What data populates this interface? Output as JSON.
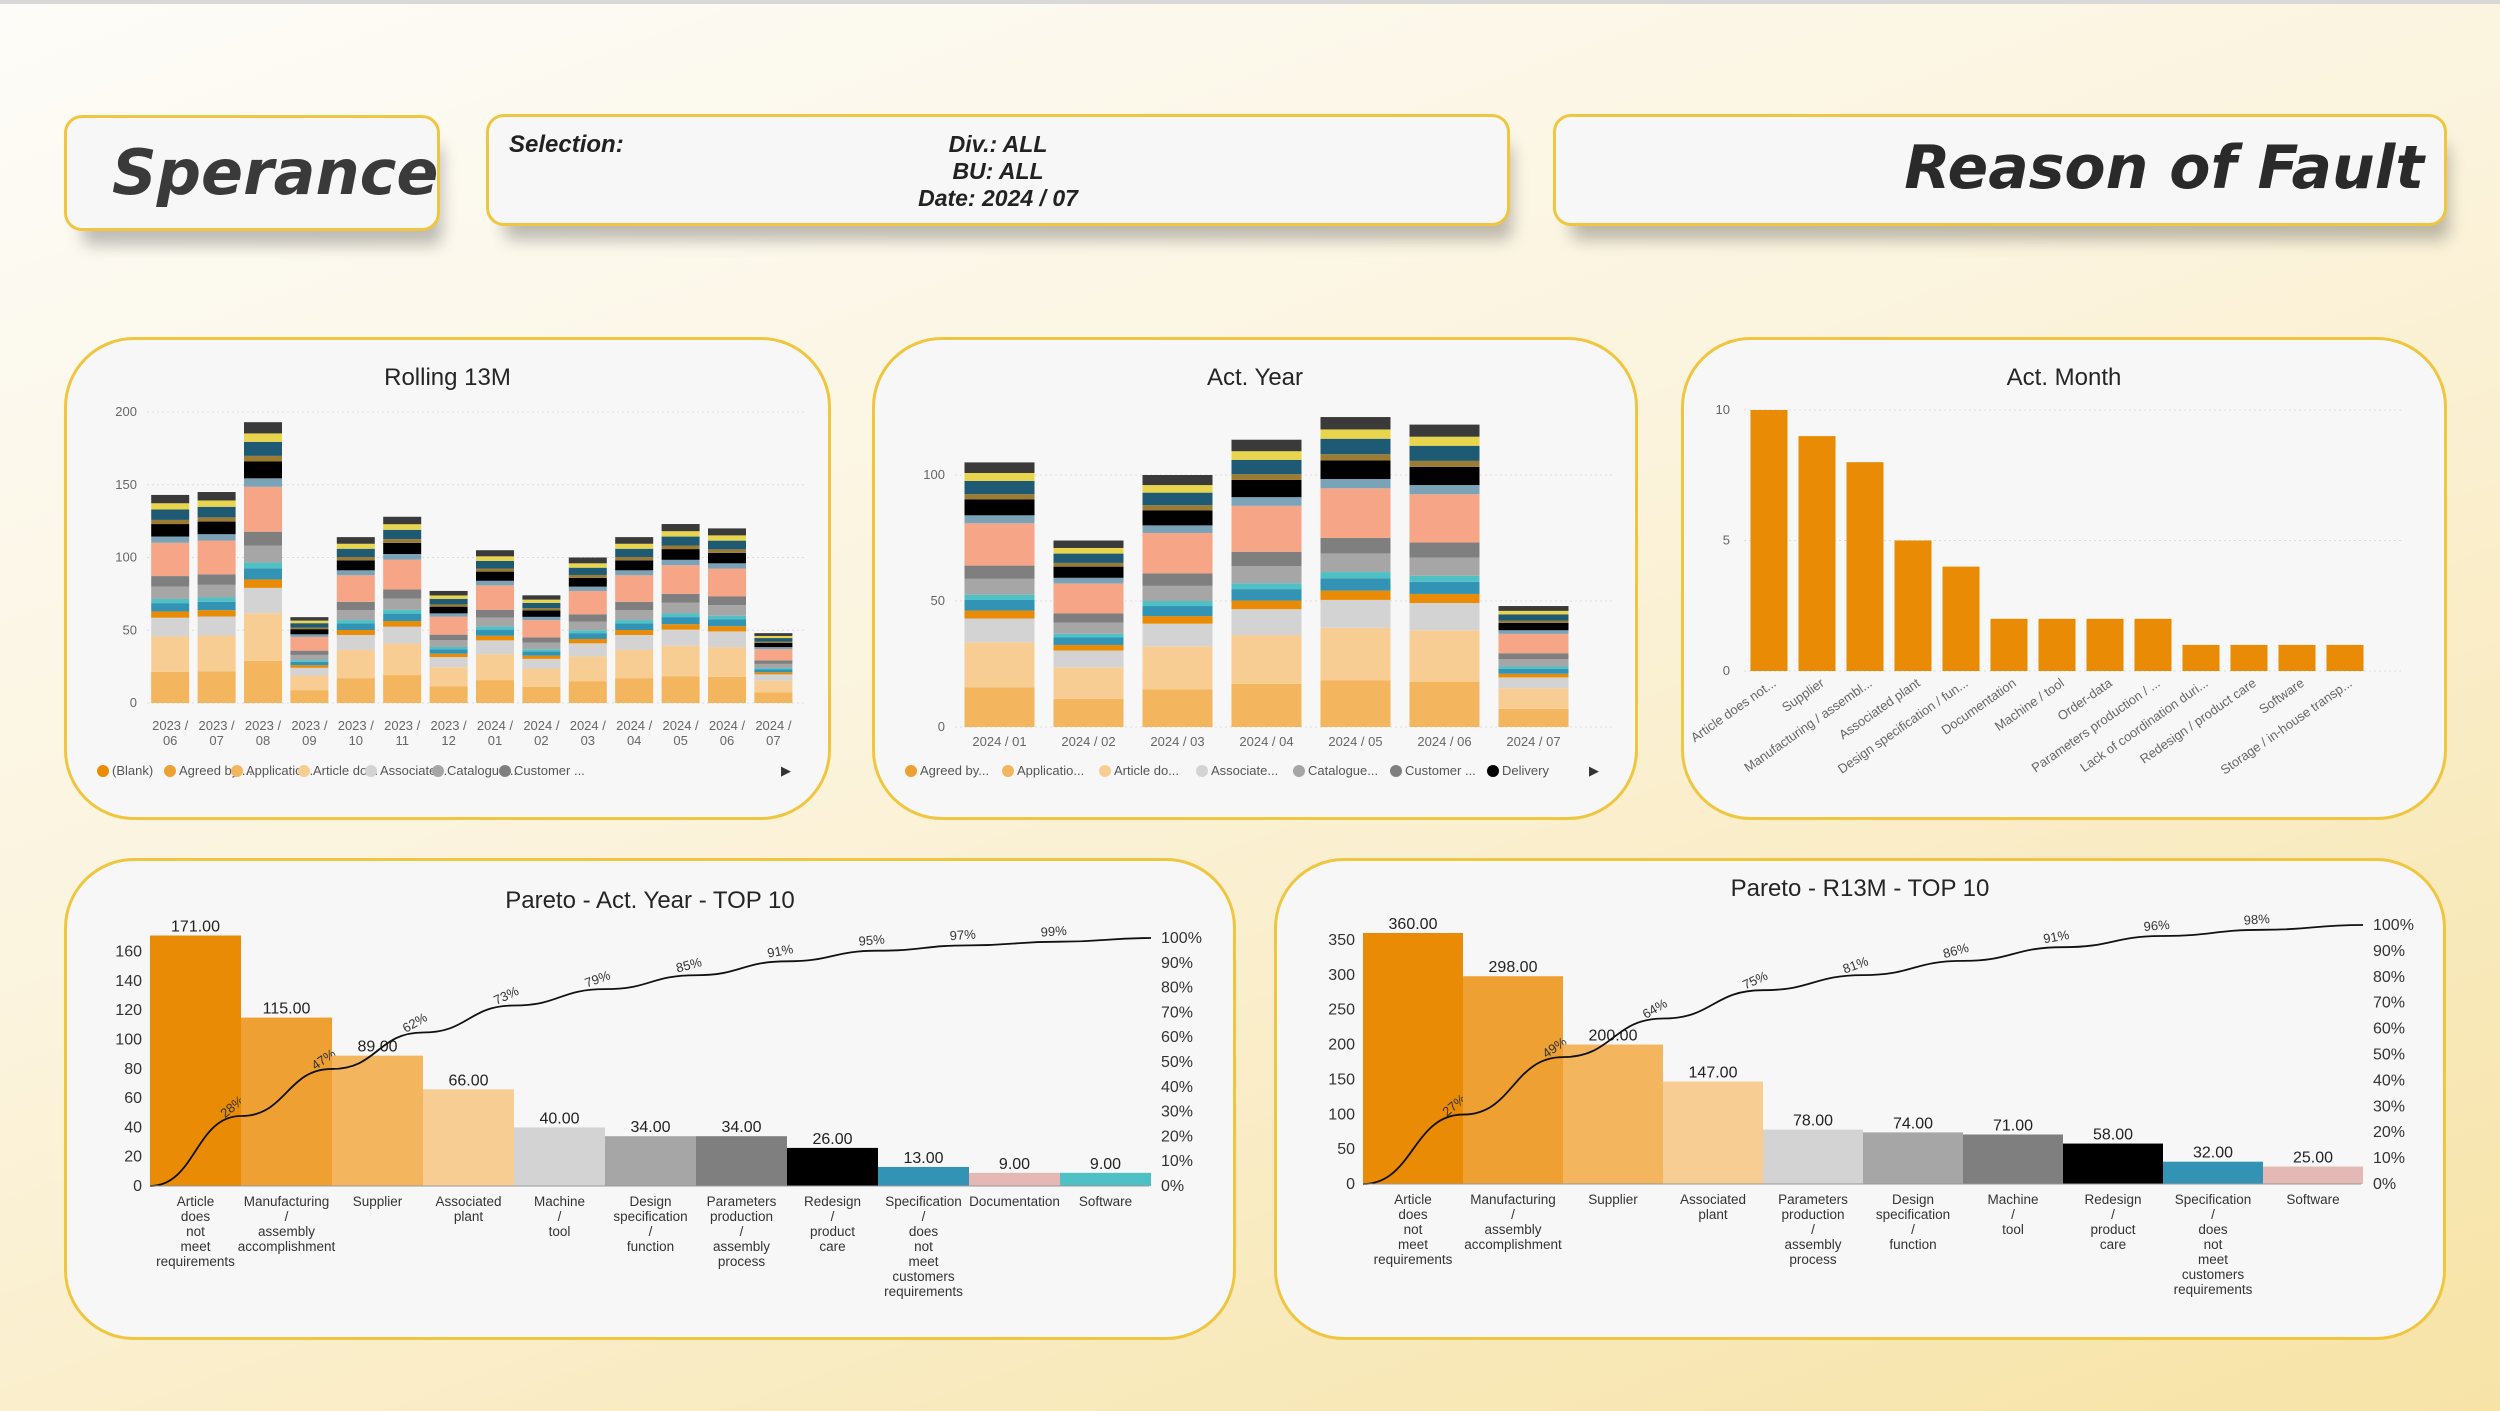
{
  "header": {
    "brand": "Sperance",
    "selection_label": "Selection:",
    "selection_lines": [
      "Div.: ALL",
      "BU: ALL",
      "Date: 2024 / 07"
    ],
    "report_title": "Reason of Fault"
  },
  "colors": {
    "border": "#f0c641",
    "orange": "#e98b04",
    "palette": [
      "#e98b04",
      "#eea033",
      "#f3b55e",
      "#f7cd93",
      "#d3d3d3",
      "#a6a6a6",
      "#7f7f7f",
      "#000000",
      "#3293b5",
      "#4fc1c5",
      "#e4b8b4",
      "#f6a586",
      "#7aa3b8",
      "#1f5a74",
      "#2c3e50",
      "#3a3a3a",
      "#9c7b32",
      "#e8d44d"
    ]
  },
  "chart_data": [
    {
      "id": "rolling",
      "type": "bar",
      "stacked": true,
      "title": "Rolling 13M",
      "categories": [
        [
          "2023 /",
          "06"
        ],
        [
          "2023 /",
          "07"
        ],
        [
          "2023 /",
          "08"
        ],
        [
          "2023 /",
          "09"
        ],
        [
          "2023 /",
          "10"
        ],
        [
          "2023 /",
          "11"
        ],
        [
          "2023 /",
          "12"
        ],
        [
          "2024 /",
          "01"
        ],
        [
          "2024 /",
          "02"
        ],
        [
          "2024 /",
          "03"
        ],
        [
          "2024 /",
          "04"
        ],
        [
          "2024 /",
          "05"
        ],
        [
          "2024 /",
          "06"
        ],
        [
          "2024 /",
          "07"
        ]
      ],
      "totals": [
        143,
        145,
        193,
        59,
        114,
        128,
        77,
        105,
        74,
        100,
        114,
        123,
        120,
        48
      ],
      "ylim": [
        0,
        200
      ],
      "yticks": [
        0,
        50,
        100,
        150,
        200
      ],
      "legend": [
        "(Blank)",
        "Agreed by ...",
        "Applicatio...",
        "Article do...",
        "Associate...",
        "Catalogue...",
        "Customer ..."
      ],
      "legend_colors": [
        "#e98b04",
        "#eea033",
        "#f3b55e",
        "#f7cd93",
        "#d3d3d3",
        "#a6a6a6",
        "#7f7f7f"
      ],
      "legend_more": "▶"
    },
    {
      "id": "actyear",
      "type": "bar",
      "stacked": true,
      "title": "Act. Year",
      "categories": [
        [
          "2024 / 01"
        ],
        [
          "2024 / 02"
        ],
        [
          "2024 / 03"
        ],
        [
          "2024 / 04"
        ],
        [
          "2024 / 05"
        ],
        [
          "2024 / 06"
        ],
        [
          "2024 / 07"
        ]
      ],
      "totals": [
        105,
        74,
        100,
        114,
        123,
        120,
        48
      ],
      "ylim": [
        0,
        125
      ],
      "yticks": [
        0,
        50,
        100
      ],
      "legend": [
        "Agreed by...",
        "Applicatio...",
        "Article do...",
        "Associate...",
        "Catalogue...",
        "Customer ...",
        "Delivery"
      ],
      "legend_colors": [
        "#eea033",
        "#f3b55e",
        "#f7cd93",
        "#d3d3d3",
        "#a6a6a6",
        "#7f7f7f",
        "#000000"
      ],
      "legend_more": "▶"
    },
    {
      "id": "actmonth",
      "type": "bar",
      "title": "Act. Month",
      "categories": [
        "Article does not...",
        "Supplier",
        "Manufacturing / assembl...",
        "Associated plant",
        "Design specification / fun...",
        "Documentation",
        "Machine / tool",
        "Order-data",
        "Parameters production / ...",
        "Lack of coordination duri...",
        "Redesign / product care",
        "Software",
        "Storage / in-house transp..."
      ],
      "values": [
        10,
        9,
        8,
        5,
        4,
        2,
        2,
        2,
        2,
        1,
        1,
        1,
        1
      ],
      "ylim": [
        0,
        10
      ],
      "yticks": [
        0,
        5,
        10
      ]
    },
    {
      "id": "pareto_year",
      "type": "bar",
      "title": "Pareto - Act. Year - TOP 10",
      "categories": [
        [
          "Article",
          "does",
          "not",
          "meet",
          "requirements"
        ],
        [
          "Manufacturing",
          "/",
          "assembly",
          "accomplishment"
        ],
        [
          "Supplier"
        ],
        [
          "Associated",
          "plant"
        ],
        [
          "Machine",
          "/",
          "tool"
        ],
        [
          "Design",
          "specification",
          "/",
          "function"
        ],
        [
          "Parameters",
          "production",
          "/",
          "assembly",
          "process"
        ],
        [
          "Redesign",
          "/",
          "product",
          "care"
        ],
        [
          "Specification",
          "/",
          "does",
          "not",
          "meet",
          "customers",
          "requirements"
        ],
        [
          "Documentation"
        ],
        [
          "Software"
        ]
      ],
      "values": [
        171,
        115,
        89,
        66,
        40,
        34,
        34,
        26,
        13,
        9,
        9
      ],
      "value_labels": [
        "171.00",
        "115.00",
        "89.00",
        "66.00",
        "40.00",
        "34.00",
        "34.00",
        "26.00",
        "13.00",
        "9.00",
        "9.00"
      ],
      "bar_colors": [
        "#e98b04",
        "#eea033",
        "#f3b55e",
        "#f7cd93",
        "#d3d3d3",
        "#a6a6a6",
        "#7f7f7f",
        "#000000",
        "#3293b5",
        "#e4b8b4",
        "#4fc1c5"
      ],
      "cumulative_labels": [
        "28%",
        "47%",
        "62%",
        "73%",
        "79%",
        "85%",
        "91%",
        "95%",
        "97%",
        "99%"
      ],
      "ylim": [
        0,
        170
      ],
      "yticks": [
        0,
        20,
        40,
        60,
        80,
        100,
        120,
        140,
        160
      ],
      "y2ticks": [
        "0%",
        "10%",
        "20%",
        "30%",
        "40%",
        "50%",
        "60%",
        "70%",
        "80%",
        "90%",
        "100%"
      ]
    },
    {
      "id": "pareto_r13m",
      "type": "bar",
      "title": "Pareto - R13M - TOP 10",
      "categories": [
        [
          "Article",
          "does",
          "not",
          "meet",
          "requirements"
        ],
        [
          "Manufacturing",
          "/",
          "assembly",
          "accomplishment"
        ],
        [
          "Supplier"
        ],
        [
          "Associated",
          "plant"
        ],
        [
          "Parameters",
          "production",
          "/",
          "assembly",
          "process"
        ],
        [
          "Design",
          "specification",
          "/",
          "function"
        ],
        [
          "Machine",
          "/",
          "tool"
        ],
        [
          "Redesign",
          "/",
          "product",
          "care"
        ],
        [
          "Specification",
          "/",
          "does",
          "not",
          "meet",
          "customers",
          "requirements"
        ],
        [
          "Software"
        ]
      ],
      "values": [
        360,
        298,
        200,
        147,
        78,
        74,
        71,
        58,
        32,
        25
      ],
      "value_labels": [
        "360.00",
        "298.00",
        "200.00",
        "147.00",
        "78.00",
        "74.00",
        "71.00",
        "58.00",
        "32.00",
        "25.00"
      ],
      "bar_colors": [
        "#e98b04",
        "#eea033",
        "#f3b55e",
        "#f7cd93",
        "#d3d3d3",
        "#a6a6a6",
        "#7f7f7f",
        "#000000",
        "#3293b5",
        "#e4b8b4"
      ],
      "cumulative_labels": [
        "27%",
        "49%",
        "64%",
        "75%",
        "81%",
        "86%",
        "91%",
        "96%",
        "98%"
      ],
      "ylim": [
        0,
        360
      ],
      "yticks": [
        0,
        50,
        100,
        150,
        200,
        250,
        300,
        350
      ],
      "y2ticks": [
        "0%",
        "10%",
        "20%",
        "30%",
        "40%",
        "50%",
        "60%",
        "70%",
        "80%",
        "90%",
        "100%"
      ]
    }
  ]
}
